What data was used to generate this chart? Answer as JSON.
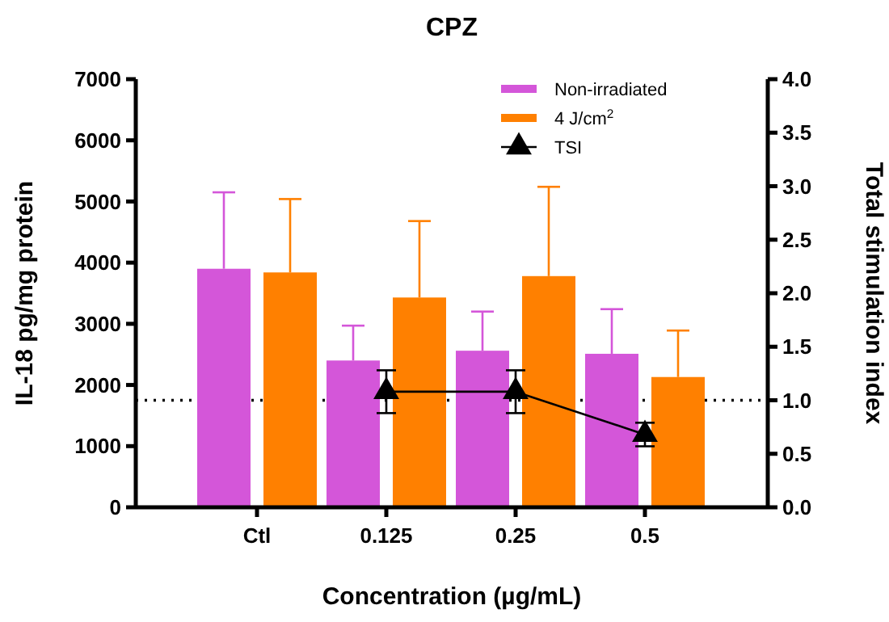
{
  "chart_data": {
    "type": "bar",
    "title": "CPZ",
    "xlabel": "Concentration (µg/mL)",
    "ylabel": "IL-18 pg/mg protein",
    "y2label": "Total stimulation index",
    "categories": [
      "Ctl",
      "0.125",
      "0.25",
      "0.5"
    ],
    "series": [
      {
        "name": "Non-irradiated",
        "color": "#d456d9",
        "values": [
          3900,
          2400,
          2560,
          2510
        ],
        "errors": [
          [
            3900,
            5150
          ],
          [
            2400,
            2970
          ],
          [
            2560,
            3200
          ],
          [
            2510,
            3240
          ]
        ]
      },
      {
        "name": "4 J/cm$^{2}$",
        "color": "#ff8000",
        "values": [
          3840,
          3430,
          3780,
          2130
        ],
        "errors": [
          [
            3840,
            5040
          ],
          [
            3430,
            4680
          ],
          [
            3780,
            5240
          ],
          [
            2130,
            2890
          ]
        ]
      },
      {
        "name": "TSI",
        "type": "line",
        "axis": "y2",
        "color": "#000000",
        "marker": "triangle",
        "values": [
          null,
          1.08,
          1.08,
          0.68
        ],
        "errors": [
          null,
          0.2,
          0.2,
          0.11
        ]
      }
    ],
    "ylim": [
      0,
      7000
    ],
    "yticks": [
      0,
      1000,
      2000,
      3000,
      4000,
      5000,
      6000,
      7000
    ],
    "y2lim": [
      0,
      4
    ],
    "y2ticks": [
      {
        "value": 0,
        "label": "0.0"
      },
      {
        "value": 0.5,
        "label": "0.5"
      },
      {
        "value": 1,
        "label": "1.0"
      },
      {
        "value": 1.5,
        "label": "1.5"
      },
      {
        "value": 2,
        "label": "2.0"
      },
      {
        "value": 2.5,
        "label": "2.5"
      },
      {
        "value": 3,
        "label": "3.0"
      },
      {
        "value": 3.5,
        "label": "3.5"
      },
      {
        "value": 4,
        "label": "4.0"
      }
    ],
    "ref_lines": [
      {
        "axis": "y2",
        "value": 1,
        "line_style": "dotted"
      }
    ],
    "legend": "top right",
    "grid": false
  }
}
